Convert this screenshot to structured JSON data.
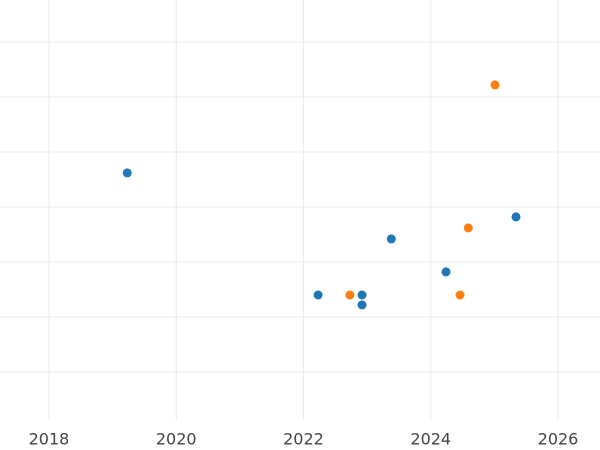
{
  "chart_data": {
    "type": "scatter",
    "xlim": [
      2017.23,
      2026.66
    ],
    "xticks": [
      2018,
      2020,
      2022,
      2024,
      2026
    ],
    "ylim": [
      0.1,
      7.8
    ],
    "yticks": [
      1,
      2,
      3,
      4,
      5,
      6,
      7
    ],
    "grid": true,
    "series": [
      {
        "color": "#1f77b4",
        "x": [
          2019.23,
          2022.23,
          2022.92,
          2022.92,
          2023.38,
          2024.24,
          2025.34
        ],
        "values": [
          4.62,
          2.4,
          2.4,
          2.22,
          3.42,
          2.82,
          3.82
        ]
      },
      {
        "color": "#ff7f0e",
        "x": [
          2025.01,
          2024.59,
          2022.73,
          2024.46
        ],
        "values": [
          6.22,
          3.62,
          2.4,
          2.4
        ]
      }
    ]
  }
}
